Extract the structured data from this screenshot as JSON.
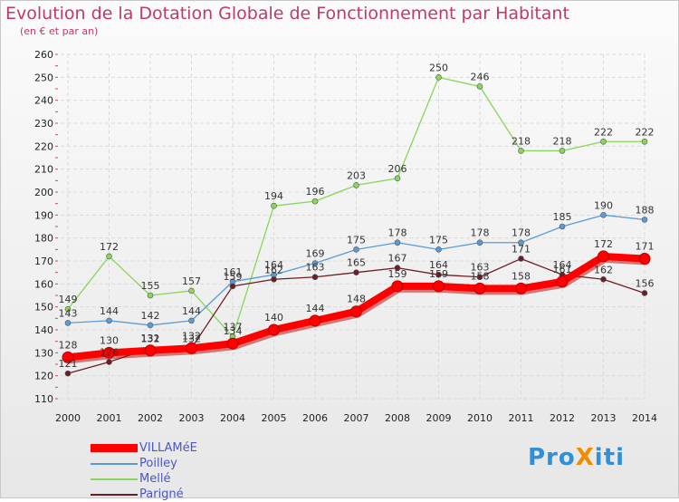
{
  "title": "Evolution de la Dotation Globale de Fonctionnement par Habitant",
  "subtitle": "(en € et par an)",
  "brand": "ProXiti",
  "chart_data": {
    "type": "line",
    "title": "Evolution de la Dotation Globale de Fonctionnement par Habitant",
    "ylabel": "(en € et par an)",
    "xlabel": "",
    "categories": [
      "2000",
      "2001",
      "2002",
      "2003",
      "2004",
      "2005",
      "2006",
      "2007",
      "2008",
      "2009",
      "2010",
      "2011",
      "2012",
      "2013",
      "2014"
    ],
    "ylim": [
      110,
      260
    ],
    "yticks": [
      110,
      120,
      130,
      140,
      150,
      160,
      170,
      180,
      190,
      200,
      210,
      220,
      230,
      240,
      250,
      260
    ],
    "grid": true,
    "legend_position": "bottom-left",
    "series": [
      {
        "name": "Mellé",
        "color": "#88d65a",
        "values": [
          149,
          172,
          155,
          157,
          137,
          194,
          196,
          203,
          206,
          250,
          246,
          218,
          218,
          222,
          222
        ]
      },
      {
        "name": "Poilley",
        "color": "#5b9bd5",
        "values": [
          143,
          144,
          142,
          144,
          161,
          164,
          169,
          175,
          178,
          175,
          178,
          178,
          185,
          190,
          188
        ]
      },
      {
        "name": "Parigné",
        "color": "#6b1f24",
        "values": [
          121,
          126,
          132,
          132,
          159,
          162,
          163,
          165,
          167,
          164,
          163,
          171,
          164,
          162,
          156
        ]
      },
      {
        "name": "VILLAMéE",
        "color": "#ff0000",
        "values": [
          128,
          130,
          131,
          132,
          134,
          140,
          144,
          148,
          159,
          159,
          158,
          158,
          161,
          172,
          171
        ]
      }
    ]
  },
  "legend": [
    {
      "name": "VILLAMéE",
      "color": "#ff0000"
    },
    {
      "name": "Poilley",
      "color": "#5b9bd5"
    },
    {
      "name": "Mellé",
      "color": "#88d65a"
    },
    {
      "name": "Parigné",
      "color": "#6b1f24"
    }
  ]
}
